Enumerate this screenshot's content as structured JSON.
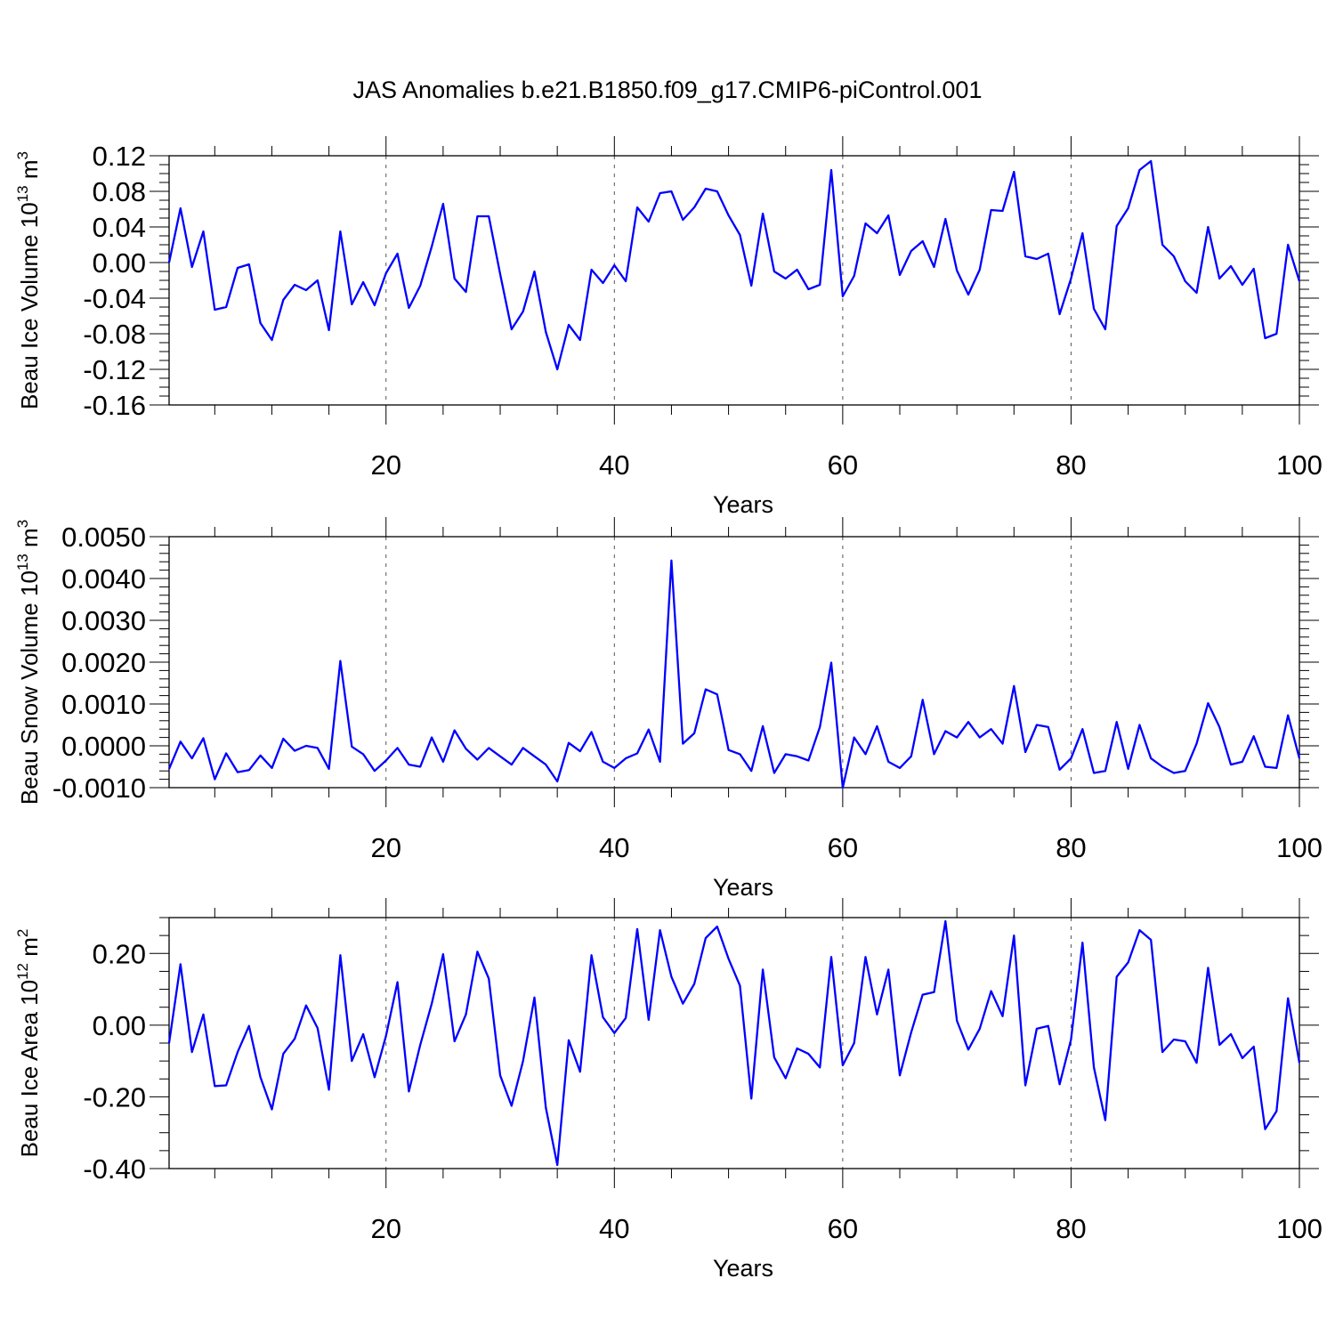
{
  "figure": {
    "title": "JAS Anomalies b.e21.B1850.f09_g17.CMIP6-piControl.001"
  },
  "style": {
    "line_color": "#0000ff",
    "axis_color": "#000000",
    "grid_color": "#555555"
  },
  "chart_data": [
    {
      "type": "line",
      "xlabel": "Years",
      "ylabel": {
        "text": "Beau Ice Volume 10",
        "exp": "13",
        "unit": " m",
        "unit_exp": "3"
      },
      "xlim": [
        1,
        100
      ],
      "ylim": [
        -0.16,
        0.12
      ],
      "x_ticks": [
        "20",
        "40",
        "60",
        "80",
        "100"
      ],
      "y_ticks": [
        "0.12",
        "0.08",
        "0.04",
        "0.00",
        "-0.04",
        "-0.08",
        "-0.12",
        "-0.16"
      ],
      "grid": "dashed vertical at x = 20, 40, 60, 80",
      "series": [
        {
          "values": [
            0.0,
            0.061,
            -0.005,
            0.035,
            -0.053,
            -0.05,
            -0.006,
            -0.002,
            -0.068,
            -0.087,
            -0.042,
            -0.025,
            -0.031,
            -0.02,
            -0.076,
            0.035,
            -0.047,
            -0.022,
            -0.048,
            -0.012,
            0.01,
            -0.051,
            -0.026,
            0.018,
            0.066,
            -0.018,
            -0.033,
            0.052,
            0.052,
            -0.013,
            -0.075,
            -0.055,
            -0.01,
            -0.078,
            -0.12,
            -0.07,
            -0.087,
            -0.008,
            -0.023,
            -0.003,
            -0.021,
            0.062,
            0.046,
            0.078,
            0.08,
            0.048,
            0.062,
            0.083,
            0.08,
            0.053,
            0.031,
            -0.026,
            0.055,
            -0.01,
            -0.018,
            -0.008,
            -0.03,
            -0.025,
            0.104,
            -0.038,
            -0.015,
            0.044,
            0.033,
            0.053,
            -0.014,
            0.013,
            0.024,
            -0.005,
            0.049,
            -0.009,
            -0.036,
            -0.008,
            0.059,
            0.058,
            0.102,
            0.007,
            0.004,
            0.01,
            -0.058,
            -0.018,
            0.033,
            -0.052,
            -0.075,
            0.041,
            0.061,
            0.104,
            0.114,
            0.02,
            0.007,
            -0.021,
            -0.034,
            0.04,
            -0.018,
            -0.004,
            -0.025,
            -0.007,
            -0.085,
            -0.08,
            0.02,
            -0.021
          ]
        }
      ]
    },
    {
      "type": "line",
      "xlabel": "Years",
      "ylabel": {
        "text": "Beau Snow Volume 10",
        "exp": "13",
        "unit": " m",
        "unit_exp": "3"
      },
      "xlim": [
        1,
        100
      ],
      "ylim": [
        -0.001,
        0.005
      ],
      "x_ticks": [
        "20",
        "40",
        "60",
        "80",
        "100"
      ],
      "y_ticks": [
        "0.0050",
        "0.0040",
        "0.0030",
        "0.0020",
        "0.0010",
        "0.0000",
        "-0.0010"
      ],
      "grid": "dashed vertical at x = 20, 40, 60, 80",
      "series": [
        {
          "values": [
            -0.00055,
            0.0001,
            -0.0003,
            0.00018,
            -0.0008,
            -0.00018,
            -0.00063,
            -0.00058,
            -0.00023,
            -0.00053,
            0.00017,
            -0.00012,
            0.0,
            -5e-05,
            -0.00055,
            0.00203,
            -2e-05,
            -0.0002,
            -0.0006,
            -0.00035,
            -5e-05,
            -0.00045,
            -0.0005,
            0.0002,
            -0.00038,
            0.00037,
            -7e-05,
            -0.00033,
            -5e-05,
            -0.00025,
            -0.00045,
            -5e-05,
            -0.00025,
            -0.00045,
            -0.00085,
            7e-05,
            -0.00013,
            0.00033,
            -0.00038,
            -0.00053,
            -0.0003,
            -0.00018,
            0.00039,
            -0.00038,
            0.00443,
            5e-05,
            0.0003,
            0.00135,
            0.00123,
            -0.0001,
            -0.0002,
            -0.0006,
            0.00047,
            -0.00065,
            -0.0002,
            -0.00025,
            -0.00035,
            0.00045,
            0.00199,
            -0.001,
            0.0002,
            -0.0002,
            0.00047,
            -0.00038,
            -0.00053,
            -0.00025,
            0.0011,
            -0.0002,
            0.00035,
            0.0002,
            0.00057,
            0.0002,
            0.0004,
            5e-05,
            0.00143,
            -0.00015,
            0.0005,
            0.00045,
            -0.00057,
            -0.0003,
            0.0004,
            -0.00065,
            -0.0006,
            0.00057,
            -0.00055,
            0.0005,
            -0.0003,
            -0.0005,
            -0.00065,
            -0.0006,
            5e-05,
            0.00102,
            0.00045,
            -0.00045,
            -0.00038,
            0.00023,
            -0.0005,
            -0.00053,
            0.00073,
            -0.0003
          ]
        }
      ]
    },
    {
      "type": "line",
      "xlabel": "Years",
      "ylabel": {
        "text": "Beau Ice Area 10",
        "exp": "12",
        "unit": " m",
        "unit_exp": "2"
      },
      "xlim": [
        1,
        100
      ],
      "ylim": [
        -0.4,
        0.3
      ],
      "x_ticks": [
        "20",
        "40",
        "60",
        "80",
        "100"
      ],
      "y_ticks": [
        "0.20",
        "0.00",
        "-0.20",
        "-0.40"
      ],
      "grid": "dashed vertical at x = 20, 40, 60, 80",
      "series": [
        {
          "values": [
            -0.05,
            0.17,
            -0.075,
            0.03,
            -0.17,
            -0.168,
            -0.075,
            -0.002,
            -0.145,
            -0.235,
            -0.08,
            -0.038,
            0.055,
            -0.008,
            -0.18,
            0.195,
            -0.1,
            -0.025,
            -0.145,
            -0.03,
            0.12,
            -0.185,
            -0.055,
            0.06,
            0.198,
            -0.045,
            0.03,
            0.205,
            0.13,
            -0.14,
            -0.225,
            -0.1,
            0.077,
            -0.23,
            -0.39,
            -0.042,
            -0.13,
            0.195,
            0.022,
            -0.022,
            0.02,
            0.268,
            0.015,
            0.265,
            0.135,
            0.06,
            0.115,
            0.243,
            0.275,
            0.185,
            0.11,
            -0.205,
            0.155,
            -0.09,
            -0.148,
            -0.065,
            -0.08,
            -0.118,
            0.19,
            -0.112,
            -0.05,
            0.19,
            0.03,
            0.155,
            -0.14,
            -0.02,
            0.085,
            0.092,
            0.29,
            0.012,
            -0.068,
            -0.01,
            0.095,
            0.025,
            0.25,
            -0.168,
            -0.01,
            -0.002,
            -0.165,
            -0.04,
            0.23,
            -0.118,
            -0.265,
            0.135,
            0.175,
            0.265,
            0.238,
            -0.075,
            -0.04,
            -0.045,
            -0.105,
            0.16,
            -0.055,
            -0.025,
            -0.092,
            -0.06,
            -0.29,
            -0.24,
            0.075,
            -0.105
          ]
        }
      ]
    }
  ]
}
